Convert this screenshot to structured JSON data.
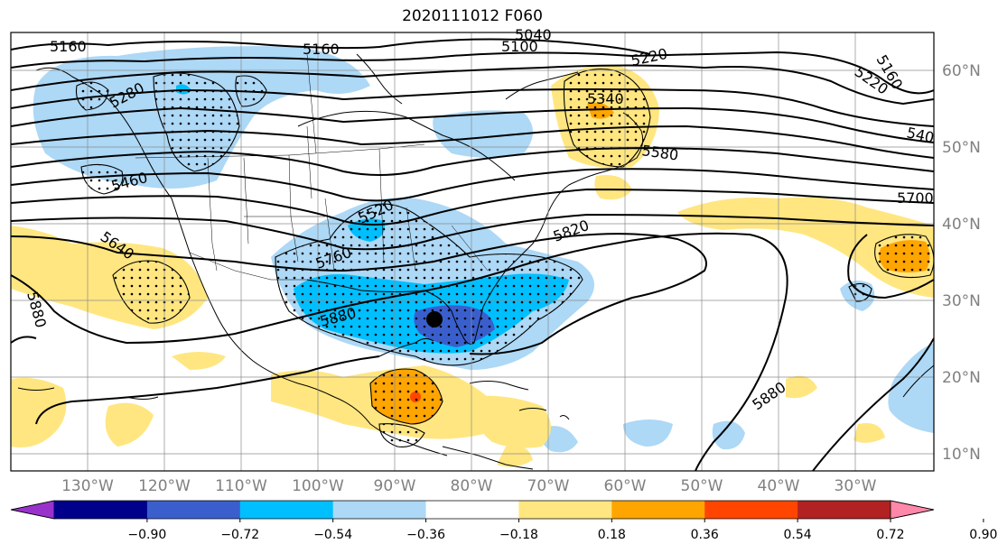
{
  "title": "2020111012 F060",
  "lat_labels": [
    "60°N",
    "50°N",
    "40°N",
    "30°N",
    "20°N",
    "10°N"
  ],
  "lon_labels": [
    "130°W",
    "120°W",
    "110°W",
    "100°W",
    "90°W",
    "80°W",
    "70°W",
    "60°W",
    "50°W",
    "40°W",
    "30°W"
  ],
  "colorbar": {
    "colors": [
      "#9932cc",
      "#00008b",
      "#3a5fcd",
      "#00bfff",
      "#add8f6",
      "#ffffff",
      "#ffe680",
      "#ffa500",
      "#ff4500",
      "#b22222",
      "#ff88aa"
    ],
    "ticks": [
      "−0.90",
      "−0.72",
      "−0.54",
      "−0.36",
      "−0.18",
      "0.18",
      "0.36",
      "0.54",
      "0.72",
      "0.90"
    ]
  },
  "contour_labels": [
    {
      "text": "5160"
    },
    {
      "text": "5160"
    },
    {
      "text": "5100"
    },
    {
      "text": "5040"
    },
    {
      "text": "5220"
    },
    {
      "text": "5160"
    },
    {
      "text": "5220"
    },
    {
      "text": "540"
    },
    {
      "text": "5280"
    },
    {
      "text": "5460"
    },
    {
      "text": "5520"
    },
    {
      "text": "5580"
    },
    {
      "text": "5700"
    },
    {
      "text": "5640"
    },
    {
      "text": "5760"
    },
    {
      "text": "5820"
    },
    {
      "text": "5880"
    },
    {
      "text": "5880"
    },
    {
      "text": "5880"
    },
    {
      "text": "5340"
    }
  ],
  "marker": {
    "name": "center-point",
    "color": "#000000"
  }
}
